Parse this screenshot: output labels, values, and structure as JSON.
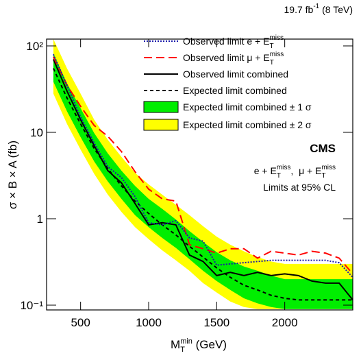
{
  "chart_data": {
    "type": "line",
    "log_y": true,
    "x": [
      300,
      400,
      500,
      600,
      700,
      800,
      900,
      1000,
      1100,
      1200,
      1300,
      1400,
      1500,
      1600,
      1700,
      1800,
      1900,
      2000,
      2100,
      2200,
      2300,
      2400,
      2500
    ],
    "xlim": [
      250,
      2500
    ],
    "xticks": [
      500,
      1000,
      1500,
      2000
    ],
    "ylim": [
      0.088,
      120
    ],
    "yticks": [
      {
        "value": 100,
        "label": "10²"
      },
      10,
      1,
      {
        "value": 0.1,
        "label": "10⁻¹"
      }
    ],
    "x_label": [
      {
        "text": "M",
        "sub": "T",
        "sup": "min"
      },
      {
        "text": " (GeV)"
      }
    ],
    "y_label": "σ × B × A (fb)",
    "lumi": [
      {
        "text": "19.7 fb",
        "sup": "-1"
      },
      {
        "text": " (8 TeV)"
      }
    ],
    "experiment": "CMS",
    "channels": [
      {
        "text": "e + E",
        "sub": "T",
        "sup": "miss"
      },
      {
        "text": ",  μ + E",
        "sub": "T",
        "sup": "miss"
      }
    ],
    "cl_note": "Limits at 95% CL",
    "series": [
      {
        "name": {
          "text": "Observed limit e + E",
          "sub": "T",
          "sup": "miss"
        },
        "color": "#1a1aa8",
        "dash": "2,2",
        "values": [
          80,
          35,
          15,
          7.5,
          4,
          3.0,
          1.8,
          0.9,
          0.85,
          0.95,
          0.6,
          0.55,
          0.29,
          0.3,
          0.31,
          0.32,
          0.33,
          0.33,
          0.33,
          0.33,
          0.33,
          0.31,
          0.21
        ]
      },
      {
        "name": {
          "text": "Observed limit μ + E",
          "sub": "T",
          "sup": "miss"
        },
        "color": "#ff0000",
        "dash": "12,6",
        "values": [
          75,
          35,
          20,
          12,
          9,
          6,
          3.5,
          2.2,
          1.7,
          1.6,
          0.5,
          0.45,
          0.4,
          0.45,
          0.45,
          0.35,
          0.42,
          0.4,
          0.38,
          0.42,
          0.4,
          0.35,
          0.23
        ]
      },
      {
        "name": "Observed limit combined",
        "color": "#000000",
        "dash": "none",
        "values": [
          70,
          30,
          14,
          7,
          3.6,
          2.6,
          1.5,
          0.85,
          0.9,
          0.85,
          0.38,
          0.32,
          0.22,
          0.24,
          0.22,
          0.24,
          0.22,
          0.23,
          0.22,
          0.19,
          0.18,
          0.18,
          0.115
        ]
      },
      {
        "name": "Expected limit combined",
        "color": "#000000",
        "dash": "5,4",
        "values": [
          55,
          25,
          12.5,
          6.5,
          3.8,
          2.4,
          1.6,
          1.15,
          0.85,
          0.65,
          0.48,
          0.36,
          0.27,
          0.21,
          0.17,
          0.15,
          0.13,
          0.12,
          0.115,
          0.115,
          0.115,
          0.115,
          0.115
        ]
      }
    ],
    "bands": [
      {
        "name": "Expected limit combined ± 1 σ",
        "color": "#00ee00",
        "lower": [
          38.5,
          17.5,
          8.8,
          4.6,
          2.7,
          1.7,
          1.1,
          0.8,
          0.6,
          0.46,
          0.34,
          0.25,
          0.19,
          0.15,
          0.12,
          0.105,
          0.095,
          0.09,
          0.09,
          0.09,
          0.09,
          0.09,
          0.09
        ],
        "upper": [
          82,
          37,
          19,
          9.8,
          5.7,
          3.6,
          2.4,
          1.7,
          1.3,
          0.98,
          0.72,
          0.54,
          0.41,
          0.33,
          0.28,
          0.25,
          0.22,
          0.2,
          0.2,
          0.2,
          0.2,
          0.2,
          0.2
        ]
      },
      {
        "name": "Expected limit combined ± 2 σ",
        "color": "#ffff00",
        "lower": [
          28,
          12.5,
          6.3,
          3.3,
          1.9,
          1.2,
          0.8,
          0.58,
          0.43,
          0.33,
          0.25,
          0.18,
          0.14,
          0.11,
          0.095,
          0.09,
          0.09,
          0.09,
          0.09,
          0.09,
          0.09,
          0.09,
          0.09
        ],
        "upper": [
          120,
          55,
          28,
          14,
          8.2,
          5.2,
          3.4,
          2.5,
          1.9,
          1.45,
          1.1,
          0.82,
          0.62,
          0.5,
          0.42,
          0.36,
          0.32,
          0.3,
          0.3,
          0.3,
          0.3,
          0.3,
          0.3
        ]
      }
    ]
  }
}
